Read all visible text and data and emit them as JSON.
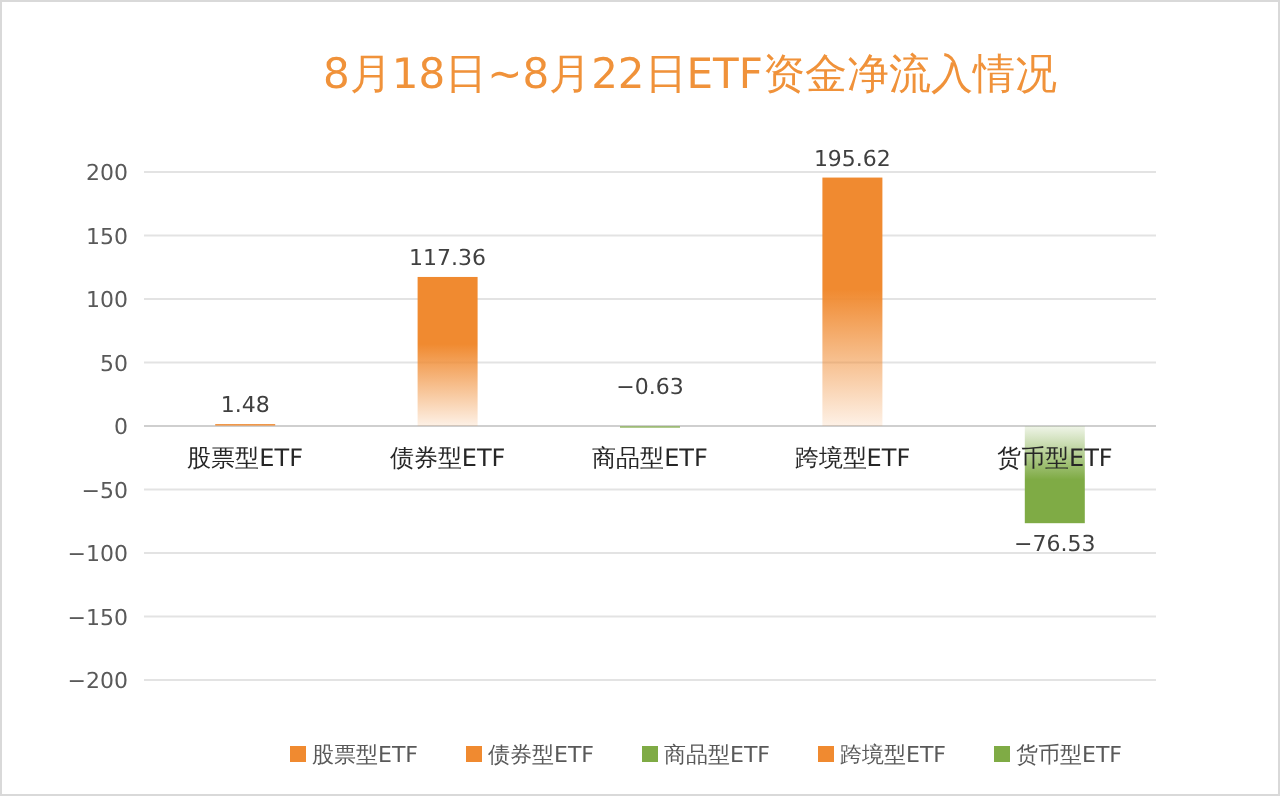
{
  "chart_data": {
    "type": "bar",
    "title": "8月18日~8月22日ETF资金净流入情况",
    "categories": [
      "股票型ETF",
      "债券型ETF",
      "商品型ETF",
      "跨境型ETF",
      "货币型ETF"
    ],
    "series": [
      {
        "name": "股票型ETF",
        "color": "#f08a30",
        "values": [
          1.48,
          null,
          null,
          null,
          null
        ]
      },
      {
        "name": "债券型ETF",
        "color": "#f08a30",
        "values": [
          null,
          117.36,
          null,
          null,
          null
        ]
      },
      {
        "name": "商品型ETF",
        "color": "#7fab45",
        "values": [
          null,
          null,
          -0.63,
          null,
          null
        ]
      },
      {
        "name": "跨境型ETF",
        "color": "#f08a30",
        "values": [
          null,
          null,
          null,
          195.62,
          null
        ]
      },
      {
        "name": "货币型ETF",
        "color": "#7fab45",
        "values": [
          null,
          null,
          null,
          null,
          -76.53
        ]
      }
    ],
    "ylim": [
      -200,
      200
    ],
    "yticks": [
      -200,
      -150,
      -100,
      -50,
      0,
      50,
      100,
      150,
      200
    ],
    "grid": "y",
    "legend": "bottom",
    "data_labels": true
  }
}
